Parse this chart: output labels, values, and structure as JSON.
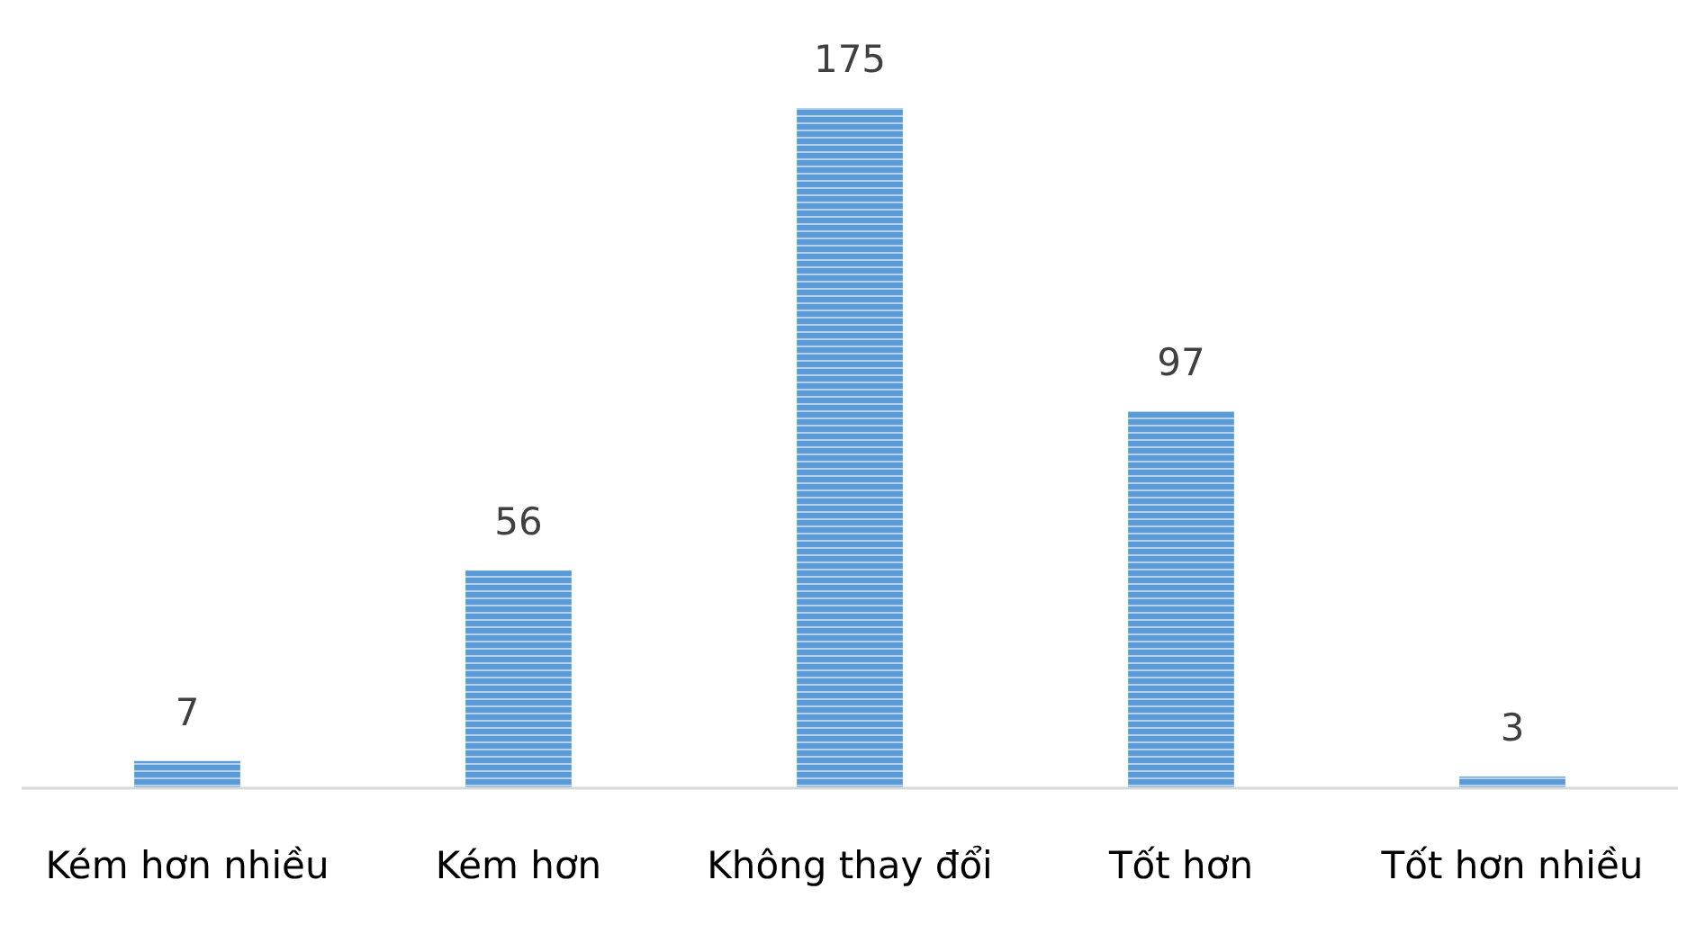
{
  "chart_data": {
    "type": "bar",
    "categories": [
      "Kém hơn nhiều",
      "Kém hơn",
      "Không thay đổi",
      "Tốt hơn",
      "Tốt hơn nhiều"
    ],
    "values": [
      7,
      56,
      175,
      97,
      3
    ],
    "color": "#5b9bd5",
    "data_labels": true
  }
}
